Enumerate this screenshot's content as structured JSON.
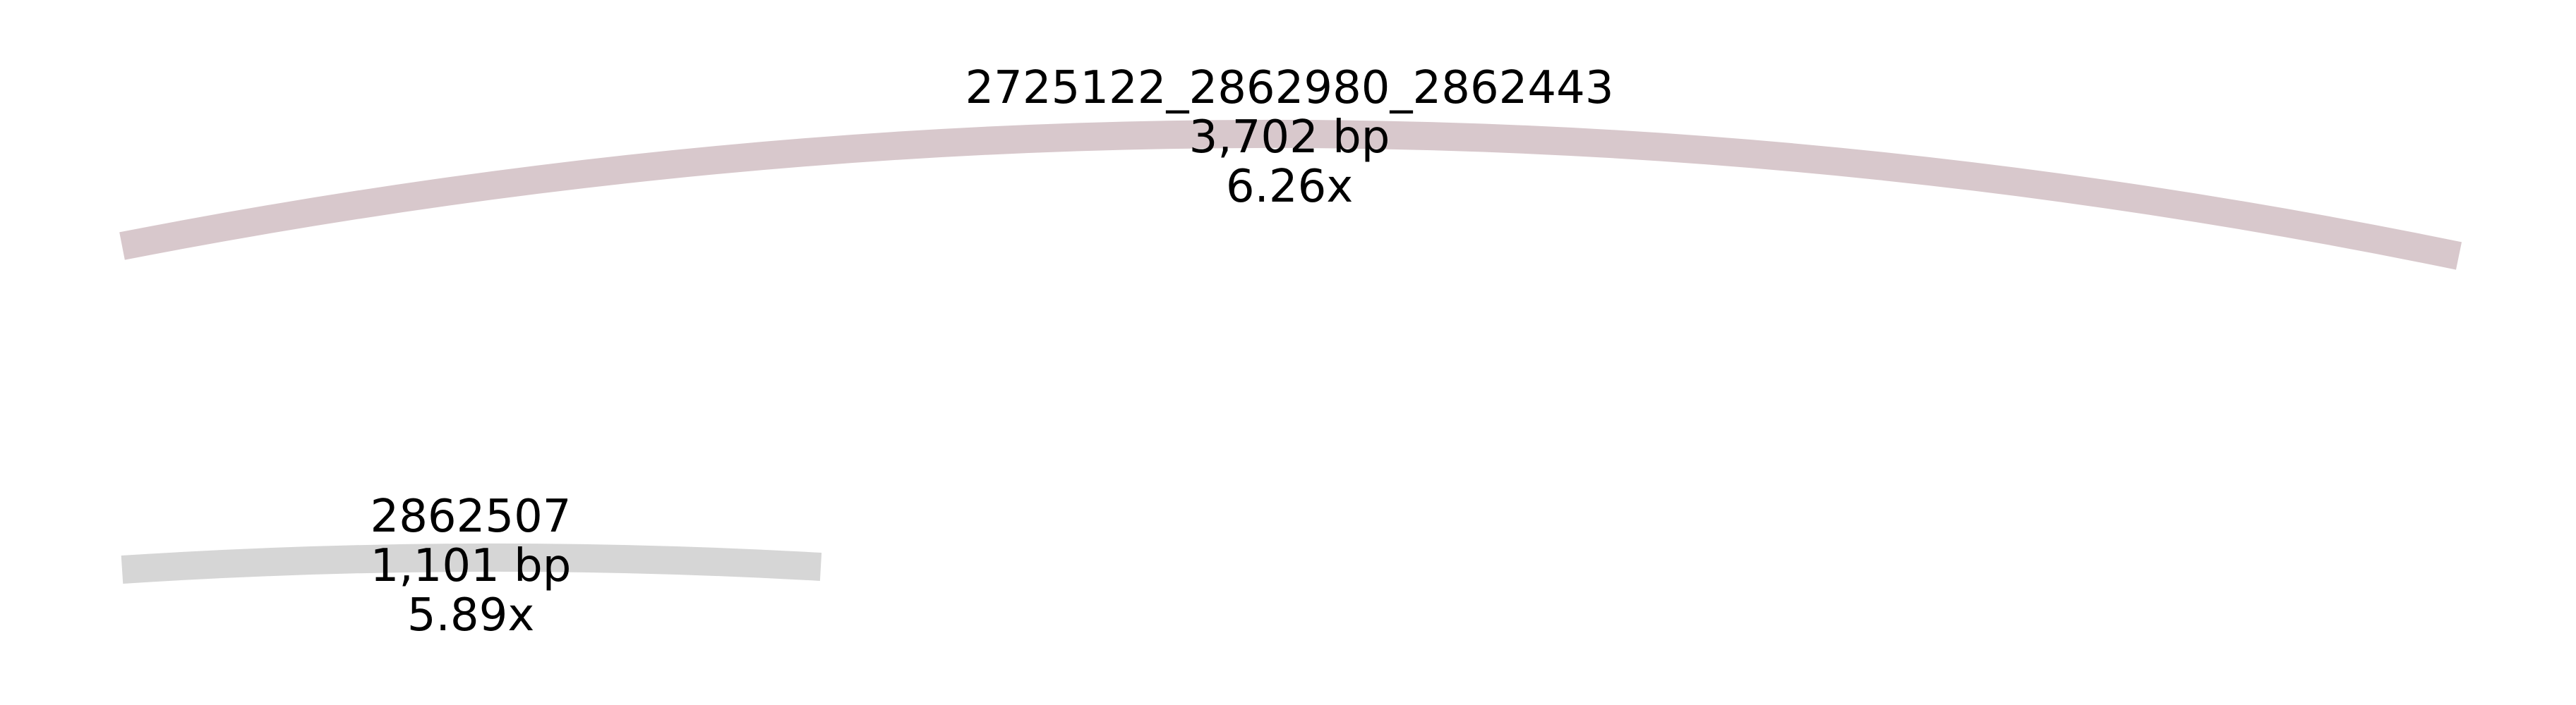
{
  "graph": {
    "segments": [
      {
        "name": "2725122_2862980_2862443",
        "length": "3,702 bp",
        "depth": "6.26x",
        "color": "#d8c8cc"
      },
      {
        "name": "2862507",
        "length": "1,101 bp",
        "depth": "5.89x",
        "color": "#d6d6d6"
      }
    ]
  }
}
